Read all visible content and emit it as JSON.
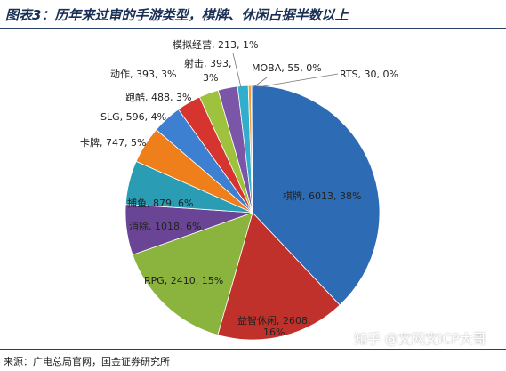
{
  "header": {
    "title": "图表3：历年来过审的手游类型，棋牌、休闲占据半数以上"
  },
  "footer": {
    "source": "来源：广电总局官网，国金证券研究所"
  },
  "watermark": "知乎 @文网文ICP大哥",
  "chart_data": {
    "type": "pie",
    "title": "图表3：历年来过审的手游类型，棋牌、休闲占据半数以上",
    "slices": [
      {
        "label": "棋牌",
        "value": 6013,
        "percent": "38%",
        "color": "#2e6bb5"
      },
      {
        "label": "益智休闲",
        "value": 2608,
        "percent": "16%",
        "color": "#c1312b"
      },
      {
        "label": "RPG",
        "value": 2410,
        "percent": "15%",
        "color": "#8ab43d"
      },
      {
        "label": "消除",
        "value": 1018,
        "percent": "6%",
        "color": "#6a4596"
      },
      {
        "label": "捕鱼",
        "value": 879,
        "percent": "6%",
        "color": "#2a9cb3"
      },
      {
        "label": "卡牌",
        "value": 747,
        "percent": "5%",
        "color": "#ef7f1a"
      },
      {
        "label": "SLG",
        "value": 596,
        "percent": "4%",
        "color": "#3d7fd0"
      },
      {
        "label": "跑酷",
        "value": 488,
        "percent": "3%",
        "color": "#d6352f"
      },
      {
        "label": "动作",
        "value": 393,
        "percent": "3%",
        "color": "#9fc23e"
      },
      {
        "label": "射击",
        "value": 393,
        "percent": "3%",
        "color": "#7b56a8"
      },
      {
        "label": "模拟经营",
        "value": 213,
        "percent": "1%",
        "color": "#31aecb"
      },
      {
        "label": "MOBA",
        "value": 55,
        "percent": "0%",
        "color": "#f29b3b"
      },
      {
        "label": "RTS",
        "value": 30,
        "percent": "0%",
        "color": "#5a8fd6"
      }
    ],
    "labels": [
      {
        "text": "棋牌, 6013, 38%"
      },
      {
        "text": "益智休闲, 2608,"
      },
      {
        "text": "16%"
      },
      {
        "text": "RPG, 2410, 15%"
      },
      {
        "text": "消除, 1018, 6%"
      },
      {
        "text": "捕鱼, 879, 6%"
      },
      {
        "text": "卡牌, 747, 5%"
      },
      {
        "text": "SLG, 596, 4%"
      },
      {
        "text": "跑酷, 488, 3%"
      },
      {
        "text": "动作, 393, 3%"
      },
      {
        "text": "射击, 393,"
      },
      {
        "text": "3%"
      },
      {
        "text": "模拟经营, 213, 1%"
      },
      {
        "text": "MOBA, 55, 0%"
      },
      {
        "text": "RTS, 30, 0%"
      }
    ]
  }
}
